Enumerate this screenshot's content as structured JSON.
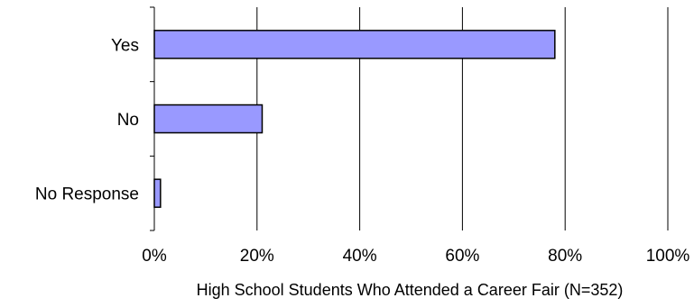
{
  "chart_data": {
    "type": "bar",
    "orientation": "horizontal",
    "categories": [
      "Yes",
      "No",
      "No Response"
    ],
    "values": [
      78,
      21,
      1.2
    ],
    "xlabel": "High School Students Who Attended a Career Fair (N=352)",
    "ylabel": "",
    "xlim": [
      0,
      100
    ],
    "x_ticks": [
      "0%",
      "20%",
      "40%",
      "60%",
      "80%",
      "100%"
    ],
    "grid": "vertical",
    "legend": "none",
    "bar_color": "#9999ff",
    "bar_edge_color": "#000000",
    "value_unit": "%"
  }
}
